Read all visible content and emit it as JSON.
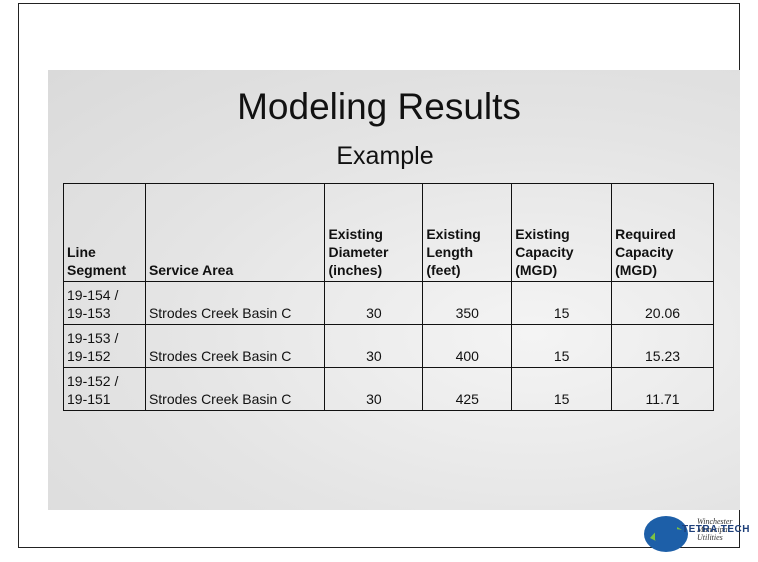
{
  "slide": {
    "title": "Modeling Results",
    "subtitle": "Example",
    "table": {
      "headers": [
        "Line Segment",
        "Service Area",
        "Existing Diameter (inches)",
        "Existing Length (feet)",
        "Existing Capacity (MGD)",
        "Required Capacity (MGD)"
      ],
      "rows": [
        [
          "19-154 / 19-153",
          "Strodes Creek Basin C",
          "30",
          "350",
          "15",
          "20.06"
        ],
        [
          "19-153 / 19-152",
          "Strodes Creek Basin C",
          "30",
          "400",
          "15",
          "15.23"
        ],
        [
          "19-152 / 19-151",
          "Strodes Creek Basin C",
          "30",
          "425",
          "15",
          "11.71"
        ]
      ]
    },
    "logos": [
      "Winchester Municipal Utilities",
      "TETRA TECH"
    ]
  }
}
